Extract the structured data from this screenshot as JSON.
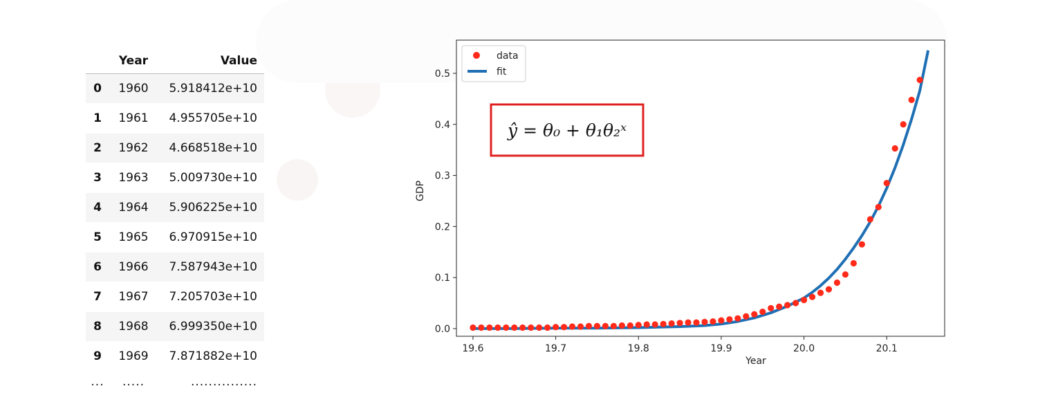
{
  "table": {
    "columns": [
      "",
      "Year",
      "Value"
    ],
    "rows": [
      {
        "index": "0",
        "year": "1960",
        "value": "5.918412e+10"
      },
      {
        "index": "1",
        "year": "1961",
        "value": "4.955705e+10"
      },
      {
        "index": "2",
        "year": "1962",
        "value": "4.668518e+10"
      },
      {
        "index": "3",
        "year": "1963",
        "value": "5.009730e+10"
      },
      {
        "index": "4",
        "year": "1964",
        "value": "5.906225e+10"
      },
      {
        "index": "5",
        "year": "1965",
        "value": "6.970915e+10"
      },
      {
        "index": "6",
        "year": "1966",
        "value": "7.587943e+10"
      },
      {
        "index": "7",
        "year": "1967",
        "value": "7.205703e+10"
      },
      {
        "index": "8",
        "year": "1968",
        "value": "6.999350e+10"
      },
      {
        "index": "9",
        "year": "1969",
        "value": "7.871882e+10"
      }
    ],
    "ellipsis": [
      "...",
      ".....",
      "..............."
    ]
  },
  "formula": {
    "text": "ŷ = θ₀ + θ₁θ₂ˣ",
    "border_color": "#e02020"
  },
  "chart_data": {
    "type": "scatter",
    "xlabel": "Year",
    "ylabel": "GDP",
    "xlim": [
      19.58,
      20.17
    ],
    "ylim": [
      -0.015,
      0.565
    ],
    "xticks": [
      19.6,
      19.7,
      19.8,
      19.9,
      20.0,
      20.1
    ],
    "xtick_labels": [
      "19.6",
      "19.7",
      "19.8",
      "19.9",
      "20.0",
      "20.1"
    ],
    "yticks": [
      0.0,
      0.1,
      0.2,
      0.3,
      0.4,
      0.5
    ],
    "ytick_labels": [
      "0.0",
      "0.1",
      "0.2",
      "0.3",
      "0.4",
      "0.5"
    ],
    "grid": false,
    "legend_position": "top-left",
    "series": [
      {
        "name": "data",
        "kind": "scatter",
        "color": "#ff2a1a",
        "x": [
          19.6,
          19.61,
          19.62,
          19.63,
          19.64,
          19.65,
          19.66,
          19.67,
          19.68,
          19.69,
          19.7,
          19.71,
          19.72,
          19.73,
          19.74,
          19.75,
          19.76,
          19.77,
          19.78,
          19.79,
          19.8,
          19.81,
          19.82,
          19.83,
          19.84,
          19.85,
          19.86,
          19.87,
          19.88,
          19.89,
          19.9,
          19.91,
          19.92,
          19.93,
          19.94,
          19.95,
          19.96,
          19.97,
          19.98,
          19.99,
          20.0,
          20.01,
          20.02,
          20.03,
          20.04,
          20.05,
          20.06,
          20.07,
          20.08,
          20.09,
          20.1,
          20.11,
          20.12,
          20.13,
          20.14
        ],
        "y": [
          0.002,
          0.002,
          0.002,
          0.002,
          0.002,
          0.002,
          0.002,
          0.002,
          0.002,
          0.002,
          0.003,
          0.003,
          0.004,
          0.004,
          0.005,
          0.005,
          0.005,
          0.005,
          0.006,
          0.006,
          0.007,
          0.008,
          0.008,
          0.009,
          0.01,
          0.011,
          0.012,
          0.012,
          0.013,
          0.014,
          0.016,
          0.018,
          0.02,
          0.024,
          0.028,
          0.033,
          0.04,
          0.043,
          0.046,
          0.05,
          0.056,
          0.062,
          0.07,
          0.077,
          0.09,
          0.106,
          0.128,
          0.165,
          0.214,
          0.238,
          0.285,
          0.353,
          0.4,
          0.448,
          0.487
        ]
      },
      {
        "name": "fit",
        "kind": "line",
        "color": "#1f6fb4",
        "x": [
          19.6,
          19.65,
          19.7,
          19.75,
          19.8,
          19.85,
          19.88,
          19.9,
          19.92,
          19.94,
          19.96,
          19.98,
          20.0,
          20.01,
          20.02,
          20.03,
          20.04,
          20.05,
          20.06,
          20.07,
          20.08,
          20.09,
          20.1,
          20.11,
          20.12,
          20.13,
          20.14,
          20.15
        ],
        "y": [
          0.0,
          0.0,
          0.001,
          0.001,
          0.002,
          0.004,
          0.006,
          0.009,
          0.014,
          0.021,
          0.031,
          0.044,
          0.06,
          0.071,
          0.084,
          0.099,
          0.116,
          0.136,
          0.158,
          0.182,
          0.209,
          0.24,
          0.275,
          0.315,
          0.36,
          0.41,
          0.466,
          0.545
        ]
      }
    ]
  }
}
